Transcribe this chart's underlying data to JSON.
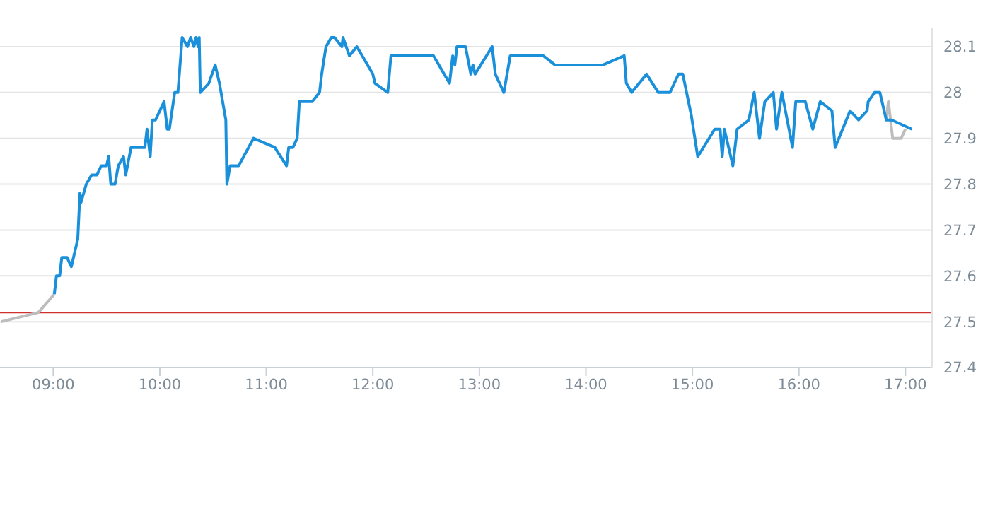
{
  "chart_data": {
    "type": "line",
    "xlim": [
      8.5,
      17.25
    ],
    "ylim": [
      27.4,
      28.14
    ],
    "xticks": [
      {
        "value": 9,
        "label": "09:00"
      },
      {
        "value": 10,
        "label": "10:00"
      },
      {
        "value": 11,
        "label": "11:00"
      },
      {
        "value": 12,
        "label": "12:00"
      },
      {
        "value": 13,
        "label": "13:00"
      },
      {
        "value": 14,
        "label": "14:00"
      },
      {
        "value": 15,
        "label": "15:00"
      },
      {
        "value": 16,
        "label": "16:00"
      },
      {
        "value": 17,
        "label": "17:00"
      }
    ],
    "yticks": [
      27.4,
      27.5,
      27.6,
      27.7,
      27.8,
      27.9,
      {
        "value": 28,
        "label": "28"
      },
      28.1
    ],
    "grid": "y",
    "ref_lines": [
      {
        "axis": "y",
        "value": 27.52,
        "color": "#d0312d"
      }
    ],
    "series": [
      {
        "color": "#bdbdbd",
        "x": [
          8.51,
          8.86,
          9.01
        ],
        "values": [
          27.5,
          27.52,
          27.56
        ]
      },
      {
        "color": "#bdbdbd",
        "x": [
          16.82,
          16.84,
          16.88,
          16.96,
          17.0
        ],
        "values": [
          27.94,
          27.98,
          27.9,
          27.9,
          27.92
        ]
      },
      {
        "color": "#1a90db",
        "x": [
          9.01,
          9.03,
          9.06,
          9.08,
          9.13,
          9.17,
          9.23,
          9.25,
          9.26,
          9.31,
          9.36,
          9.41,
          9.45,
          9.5,
          9.52,
          9.54,
          9.58,
          9.61,
          9.66,
          9.68,
          9.73,
          9.86,
          9.88,
          9.91,
          9.93,
          9.96,
          10.04,
          10.07,
          10.09,
          10.14,
          10.17,
          10.21,
          10.26,
          10.29,
          10.32,
          10.34,
          10.36,
          10.37,
          10.38,
          10.46,
          10.52,
          10.56,
          10.62,
          10.63,
          10.66,
          10.74,
          10.88,
          11.08,
          11.19,
          11.21,
          11.25,
          11.29,
          11.31,
          11.43,
          11.5,
          11.52,
          11.56,
          11.61,
          11.64,
          11.71,
          11.72,
          11.78,
          11.85,
          12.0,
          12.02,
          12.14,
          12.17,
          12.57,
          12.72,
          12.75,
          12.77,
          12.79,
          12.87,
          12.92,
          12.94,
          12.96,
          13.12,
          13.15,
          13.23,
          13.29,
          13.6,
          13.71,
          14.16,
          14.36,
          14.38,
          14.43,
          14.57,
          14.68,
          14.79,
          14.87,
          14.91,
          14.99,
          15.05,
          15.21,
          15.26,
          15.28,
          15.3,
          15.38,
          15.42,
          15.53,
          15.58,
          15.63,
          15.68,
          15.76,
          15.79,
          15.84,
          15.94,
          15.97,
          16.06,
          16.13,
          16.2,
          16.31,
          16.34,
          16.48,
          16.56,
          16.64,
          16.65,
          16.71,
          16.76,
          16.82,
          16.87,
          17.06
        ],
        "values": [
          27.56,
          27.6,
          27.6,
          27.64,
          27.64,
          27.62,
          27.68,
          27.78,
          27.76,
          27.8,
          27.82,
          27.82,
          27.84,
          27.84,
          27.86,
          27.8,
          27.8,
          27.84,
          27.86,
          27.82,
          27.88,
          27.88,
          27.92,
          27.86,
          27.94,
          27.94,
          27.98,
          27.92,
          27.92,
          28.0,
          28.0,
          28.12,
          28.1,
          28.12,
          28.1,
          28.12,
          28.1,
          28.12,
          28.0,
          28.02,
          28.06,
          28.02,
          27.94,
          27.8,
          27.84,
          27.84,
          27.9,
          27.88,
          27.84,
          27.88,
          27.88,
          27.9,
          27.98,
          27.98,
          28.0,
          28.04,
          28.1,
          28.12,
          28.12,
          28.1,
          28.12,
          28.08,
          28.1,
          28.04,
          28.02,
          28.0,
          28.08,
          28.08,
          28.02,
          28.08,
          28.06,
          28.1,
          28.1,
          28.04,
          28.06,
          28.04,
          28.1,
          28.04,
          28.0,
          28.08,
          28.08,
          28.06,
          28.06,
          28.08,
          28.02,
          28.0,
          28.04,
          28.0,
          28.0,
          28.04,
          28.04,
          27.95,
          27.86,
          27.92,
          27.92,
          27.86,
          27.92,
          27.84,
          27.92,
          27.94,
          28.0,
          27.9,
          27.98,
          28.0,
          27.92,
          28.0,
          27.88,
          27.98,
          27.98,
          27.92,
          27.98,
          27.96,
          27.88,
          27.96,
          27.94,
          27.96,
          27.98,
          28.0,
          28.0,
          27.94,
          27.94,
          27.92
        ]
      }
    ]
  }
}
